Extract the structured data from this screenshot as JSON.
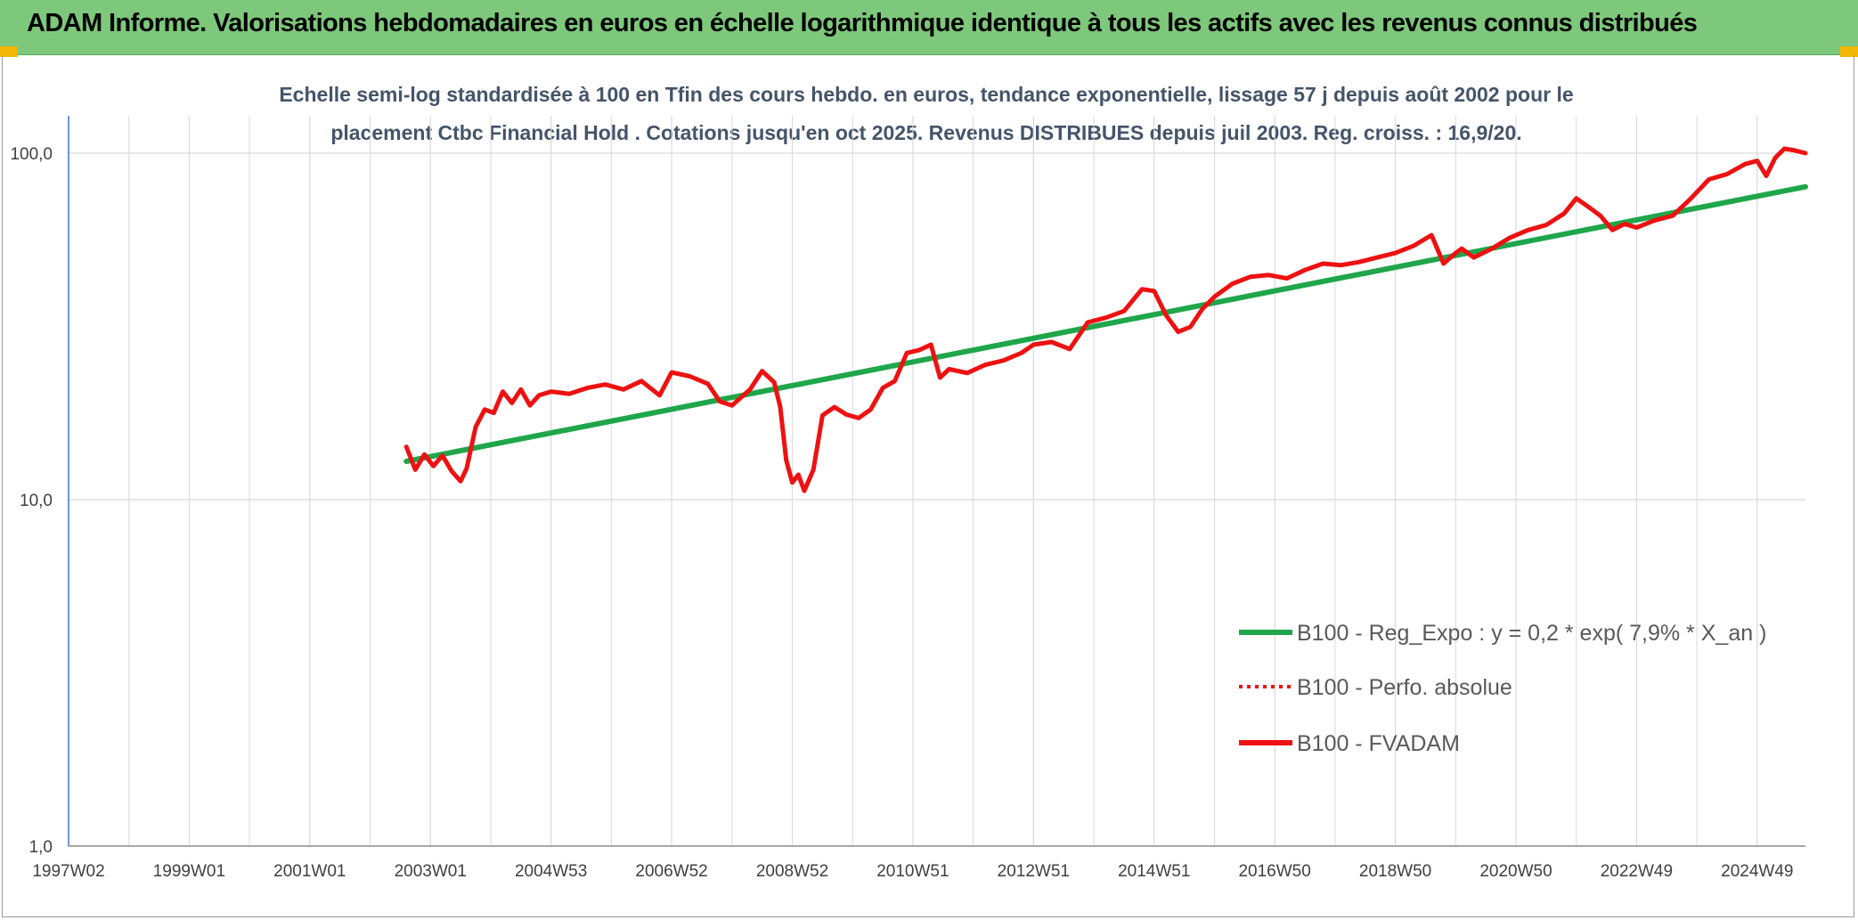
{
  "banner": {
    "title": "ADAM Informe. Valorisations hebdomadaires en euros en échelle logarithmique identique à tous les actifs avec les revenus connus distribués"
  },
  "colors": {
    "banner_bg": "#7dc87a",
    "corner": "#f2b705",
    "regression": "#1fa64a",
    "fvadam": "#ee1111",
    "grid": "#d9d9d9",
    "axis": "#4472c4",
    "title_text": "#44546a",
    "legend_text": "#595959"
  },
  "chart_data": {
    "type": "line",
    "title_lines": [
      "Echelle semi-log standardisée à 100 en Tfin des cours hebdo. en euros, tendance exponentielle, lissage 57 j depuis août 2002 pour le",
      "placement Ctbc Financial Hold . Cotations jusqu'en oct 2025. Revenus DISTRIBUES depuis juil 2003. Reg. croiss. : 16,9/20."
    ],
    "y_scale": "log",
    "ylim": [
      1,
      100
    ],
    "y_ticks": [
      {
        "value": 100,
        "label": "100,0"
      },
      {
        "value": 10,
        "label": "10,0"
      },
      {
        "value": 1,
        "label": "1,0"
      }
    ],
    "xlim": [
      1997.0,
      2025.8
    ],
    "x_ticks": [
      {
        "value": 1997.0,
        "label": "1997W02"
      },
      {
        "value": 1999.0,
        "label": "1999W01"
      },
      {
        "value": 2001.0,
        "label": "2001W01"
      },
      {
        "value": 2003.0,
        "label": "2003W01"
      },
      {
        "value": 2005.0,
        "label": "2004W53"
      },
      {
        "value": 2007.0,
        "label": "2006W52"
      },
      {
        "value": 2009.0,
        "label": "2008W52"
      },
      {
        "value": 2011.0,
        "label": "2010W51"
      },
      {
        "value": 2013.0,
        "label": "2012W51"
      },
      {
        "value": 2015.0,
        "label": "2014W51"
      },
      {
        "value": 2017.0,
        "label": "2016W50"
      },
      {
        "value": 2019.0,
        "label": "2018W50"
      },
      {
        "value": 2021.0,
        "label": "2020W50"
      },
      {
        "value": 2023.0,
        "label": "2022W49"
      },
      {
        "value": 2025.0,
        "label": "2024W49"
      }
    ],
    "grid": "vertical and horizontal",
    "legend_position": "lower-right",
    "series": [
      {
        "name": "B100 - Reg_Expo : y = 0,2 * exp( 7,9% *  X_an )",
        "style": "solid",
        "color": "#1fa64a",
        "x": [
          2002.6,
          2025.8
        ],
        "y": [
          12.9,
          80.0
        ]
      },
      {
        "name": "B100 - Perfo. absolue",
        "style": "dotted",
        "color": "#ee1111",
        "x": [],
        "y": []
      },
      {
        "name": "B100 - FVADAM",
        "style": "solid",
        "color": "#ee1111",
        "x": [
          2002.6,
          2002.75,
          2002.9,
          2003.05,
          2003.2,
          2003.35,
          2003.5,
          2003.6,
          2003.75,
          2003.9,
          2004.05,
          2004.2,
          2004.35,
          2004.5,
          2004.65,
          2004.8,
          2005.0,
          2005.3,
          2005.6,
          2005.9,
          2006.2,
          2006.5,
          2006.8,
          2007.0,
          2007.3,
          2007.6,
          2007.8,
          2008.0,
          2008.3,
          2008.5,
          2008.7,
          2008.8,
          2008.9,
          2009.0,
          2009.1,
          2009.2,
          2009.35,
          2009.5,
          2009.7,
          2009.9,
          2010.1,
          2010.3,
          2010.5,
          2010.7,
          2010.9,
          2011.1,
          2011.3,
          2011.45,
          2011.6,
          2011.9,
          2012.2,
          2012.5,
          2012.8,
          2013.0,
          2013.3,
          2013.6,
          2013.9,
          2014.2,
          2014.5,
          2014.8,
          2015.0,
          2015.2,
          2015.4,
          2015.6,
          2015.8,
          2016.0,
          2016.3,
          2016.6,
          2016.9,
          2017.2,
          2017.5,
          2017.8,
          2018.1,
          2018.4,
          2018.7,
          2019.0,
          2019.3,
          2019.6,
          2019.8,
          2020.0,
          2020.1,
          2020.3,
          2020.6,
          2020.9,
          2021.2,
          2021.5,
          2021.8,
          2022.0,
          2022.2,
          2022.4,
          2022.6,
          2022.8,
          2023.0,
          2023.3,
          2023.6,
          2023.9,
          2024.2,
          2024.5,
          2024.8,
          2025.0,
          2025.15,
          2025.3,
          2025.45,
          2025.6,
          2025.8
        ],
        "y": [
          14.2,
          12.2,
          13.5,
          12.5,
          13.4,
          12.1,
          11.3,
          12.3,
          16.2,
          18.2,
          17.8,
          20.5,
          19.0,
          20.8,
          18.7,
          20.0,
          20.5,
          20.2,
          21.0,
          21.5,
          20.8,
          22.0,
          20.0,
          23.3,
          22.7,
          21.6,
          19.2,
          18.7,
          20.8,
          23.5,
          21.8,
          18.5,
          13.0,
          11.2,
          11.8,
          10.6,
          12.2,
          17.5,
          18.5,
          17.6,
          17.2,
          18.2,
          21.0,
          22.0,
          26.5,
          27.0,
          28.0,
          22.5,
          23.8,
          23.2,
          24.5,
          25.2,
          26.5,
          28.0,
          28.5,
          27.2,
          32.5,
          33.5,
          35.0,
          40.5,
          40.0,
          34.0,
          30.5,
          31.5,
          35.5,
          38.5,
          42.0,
          44.0,
          44.5,
          43.5,
          46.0,
          48.0,
          47.5,
          48.5,
          50.0,
          51.5,
          54.0,
          58.0,
          48.0,
          51.5,
          53.0,
          50.0,
          53.0,
          57.0,
          60.0,
          62.0,
          67.0,
          74.0,
          70.0,
          66.0,
          60.0,
          62.5,
          61.0,
          64.0,
          66.0,
          74.0,
          84.0,
          87.0,
          93.0,
          95.0,
          86.0,
          97.0,
          103.0,
          102.0,
          100.0
        ]
      }
    ]
  }
}
